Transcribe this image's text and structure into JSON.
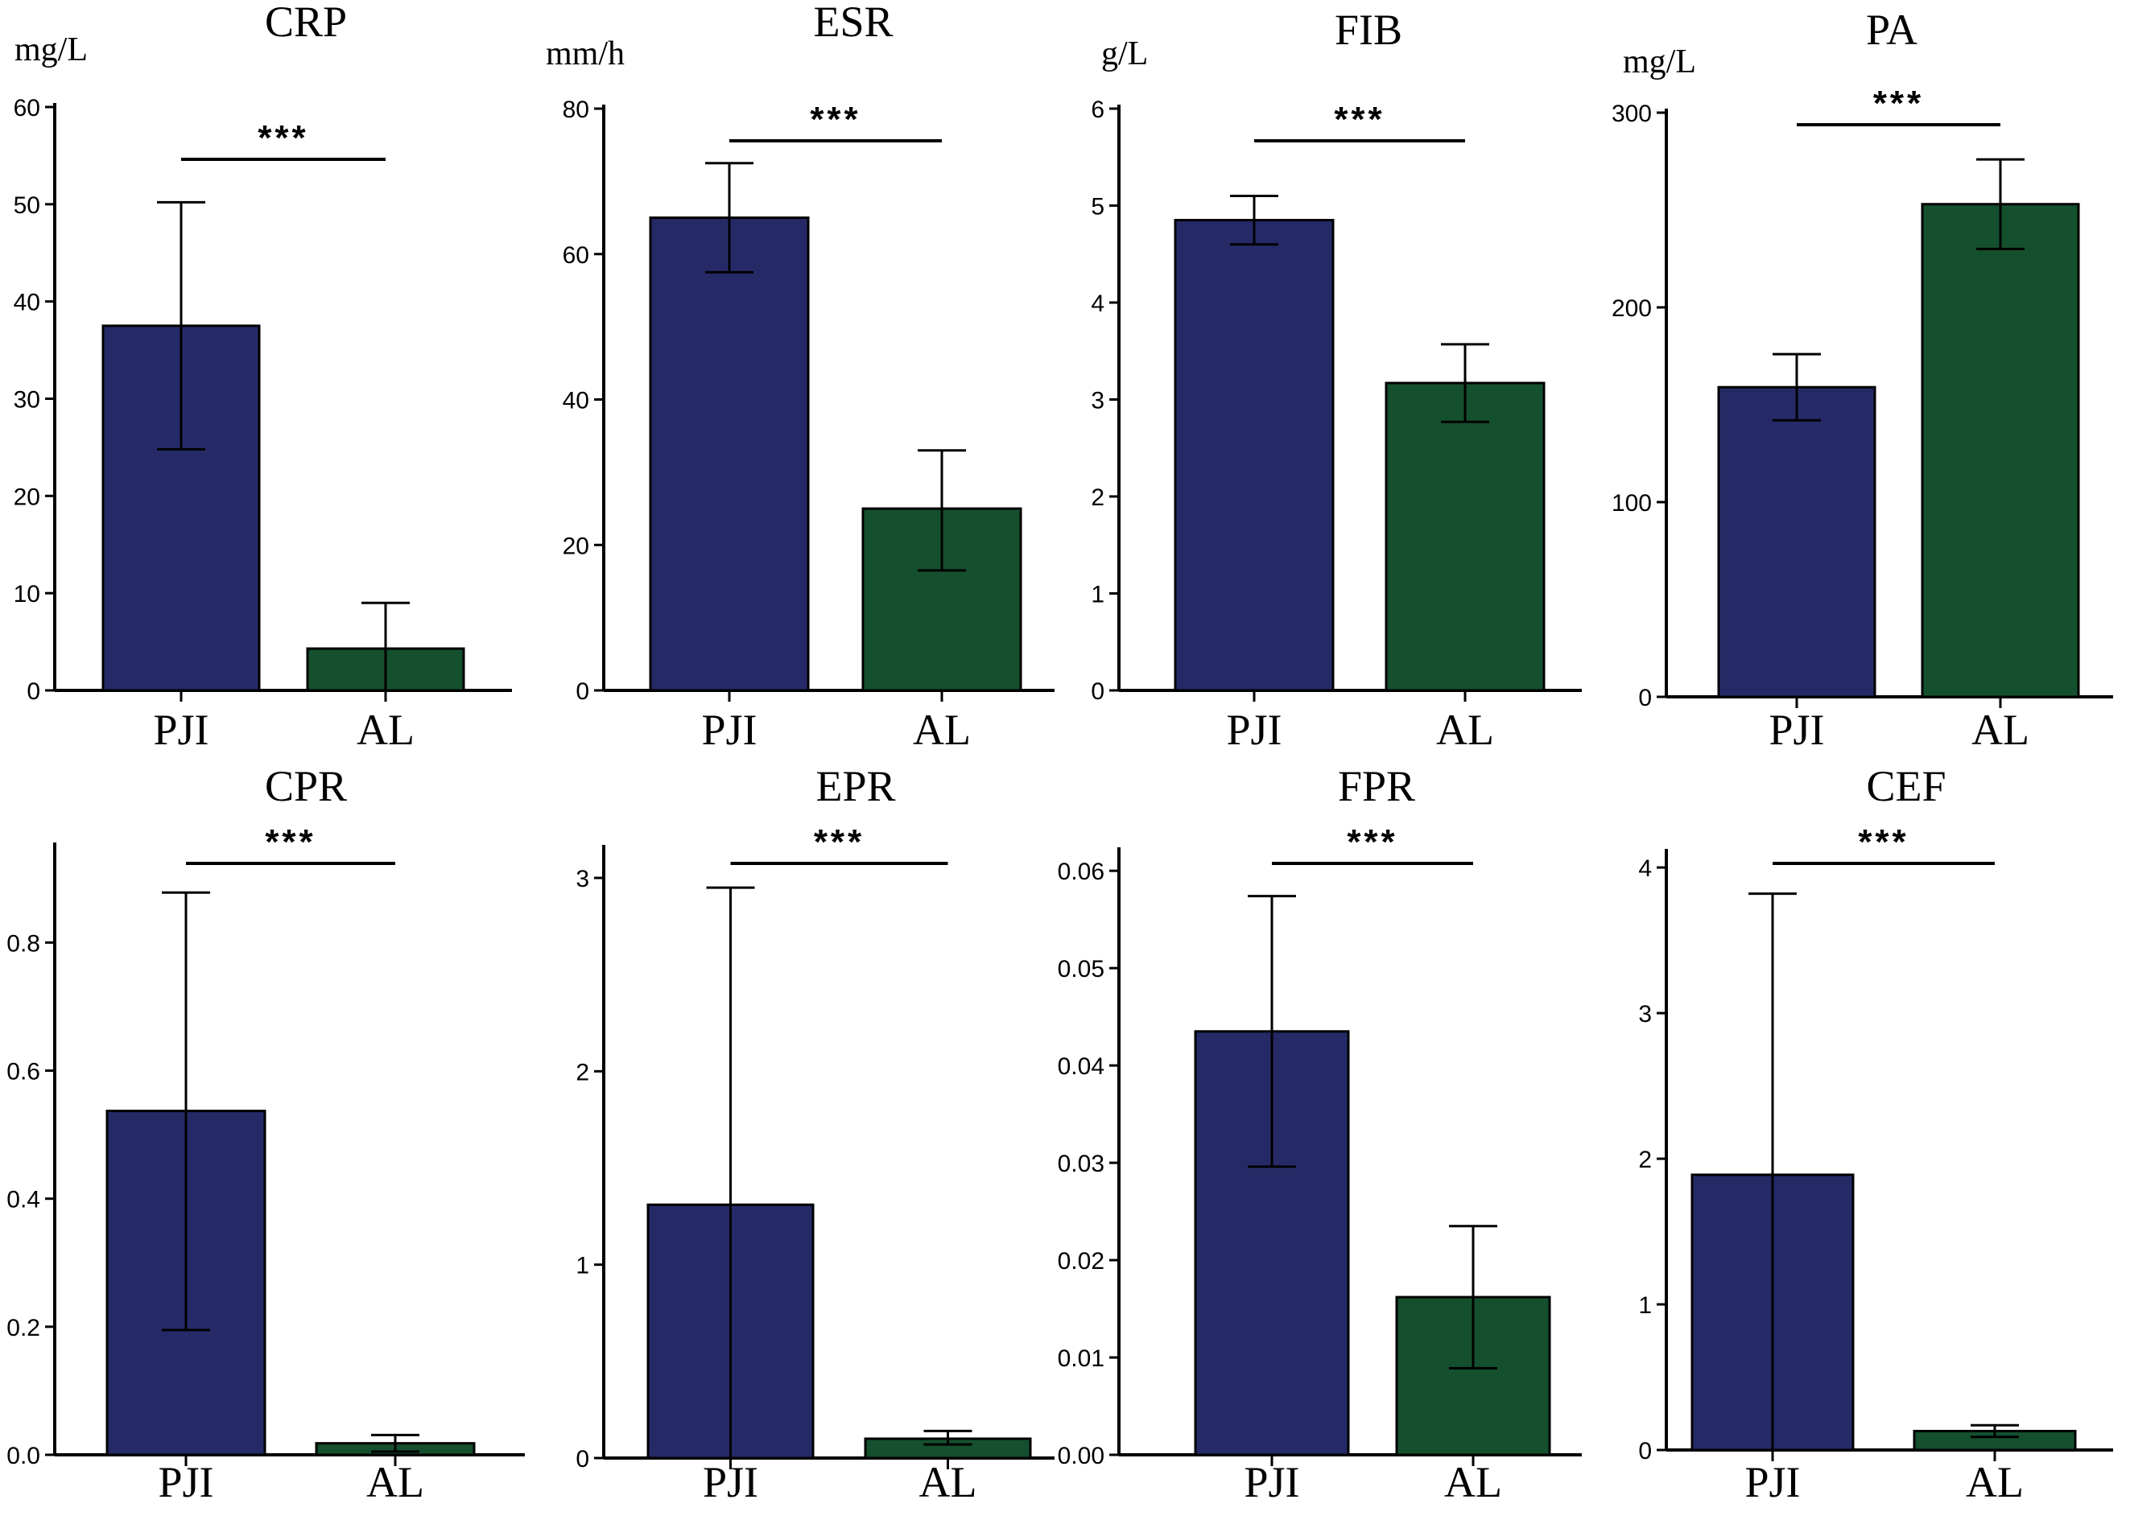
{
  "colors": {
    "PJI": "#252a67",
    "AL": "#15502e",
    "axis": "#000000"
  },
  "chart_data": [
    {
      "type": "bar",
      "title": "CRP",
      "unit": "mg/L",
      "categories": [
        "PJI",
        "AL"
      ],
      "values": [
        37.5,
        4.3
      ],
      "err_low": [
        24.8,
        0.0
      ],
      "err_high": [
        50.2,
        9.0
      ],
      "ylim": [
        0,
        60
      ],
      "yticks": [
        "0",
        "10",
        "20",
        "30",
        "40",
        "50",
        "60"
      ],
      "yticks_values": [
        0,
        10,
        20,
        30,
        40,
        50,
        60
      ],
      "significance": "***"
    },
    {
      "type": "bar",
      "title": "ESR",
      "unit": "mm/h",
      "categories": [
        "PJI",
        "AL"
      ],
      "values": [
        65,
        25
      ],
      "err_low": [
        57.5,
        16.5
      ],
      "err_high": [
        72.5,
        33.0
      ],
      "ylim": [
        0,
        80
      ],
      "yticks": [
        "0",
        "20",
        "40",
        "60",
        "80"
      ],
      "yticks_values": [
        0,
        20,
        40,
        60,
        80
      ],
      "significance": "***"
    },
    {
      "type": "bar",
      "title": "FIB",
      "unit": "g/L",
      "categories": [
        "PJI",
        "AL"
      ],
      "values": [
        4.85,
        3.17
      ],
      "err_low": [
        4.6,
        2.77
      ],
      "err_high": [
        5.1,
        3.57
      ],
      "ylim": [
        0,
        6
      ],
      "yticks": [
        "0",
        "1",
        "2",
        "3",
        "4",
        "5",
        "6"
      ],
      "yticks_values": [
        0,
        1,
        2,
        3,
        4,
        5,
        6
      ],
      "significance": "***"
    },
    {
      "type": "bar",
      "title": "PA",
      "unit": "mg/L",
      "categories": [
        "PJI",
        "AL"
      ],
      "values": [
        159,
        253
      ],
      "err_low": [
        142,
        230
      ],
      "err_high": [
        176,
        276
      ],
      "ylim": [
        0,
        300
      ],
      "yticks": [
        "0",
        "100",
        "200",
        "300"
      ],
      "yticks_values": [
        0,
        100,
        200,
        300
      ],
      "significance": "***"
    },
    {
      "type": "bar",
      "title": "CPR",
      "unit": "",
      "categories": [
        "PJI",
        "AL"
      ],
      "values": [
        0.537,
        0.018
      ],
      "err_low": [
        0.195,
        0.005
      ],
      "err_high": [
        0.878,
        0.031
      ],
      "ylim": [
        0,
        0.95
      ],
      "yticks": [
        "0.0",
        "0.2",
        "0.4",
        "0.6",
        "0.8"
      ],
      "yticks_values": [
        0,
        0.2,
        0.4,
        0.6,
        0.8
      ],
      "significance": "***"
    },
    {
      "type": "bar",
      "title": "EPR",
      "unit": "",
      "categories": [
        "PJI",
        "AL"
      ],
      "values": [
        1.31,
        0.1
      ],
      "err_low": [
        0.0,
        0.07
      ],
      "err_high": [
        2.95,
        0.14
      ],
      "ylim": [
        0,
        3.15
      ],
      "yticks": [
        "0",
        "1",
        "2",
        "3"
      ],
      "yticks_values": [
        0,
        1,
        2,
        3
      ],
      "significance": "***"
    },
    {
      "type": "bar",
      "title": "FPR",
      "unit": "",
      "categories": [
        "PJI",
        "AL"
      ],
      "values": [
        0.0435,
        0.0162
      ],
      "err_low": [
        0.0296,
        0.0089
      ],
      "err_high": [
        0.0574,
        0.0235
      ],
      "ylim": [
        0,
        0.062
      ],
      "yticks": [
        "0.00",
        "0.01",
        "0.02",
        "0.03",
        "0.04",
        "0.05",
        "0.06"
      ],
      "yticks_values": [
        0,
        0.01,
        0.02,
        0.03,
        0.04,
        0.05,
        0.06
      ],
      "significance": "***"
    },
    {
      "type": "bar",
      "title": "CEF",
      "unit": "",
      "categories": [
        "PJI",
        "AL"
      ],
      "values": [
        1.89,
        0.13
      ],
      "err_low": [
        0.0,
        0.09
      ],
      "err_high": [
        3.82,
        0.17
      ],
      "ylim": [
        0,
        4.1
      ],
      "yticks": [
        "0",
        "1",
        "2",
        "3",
        "4"
      ],
      "yticks_values": [
        0,
        1,
        2,
        3,
        4
      ],
      "significance": "***"
    }
  ]
}
